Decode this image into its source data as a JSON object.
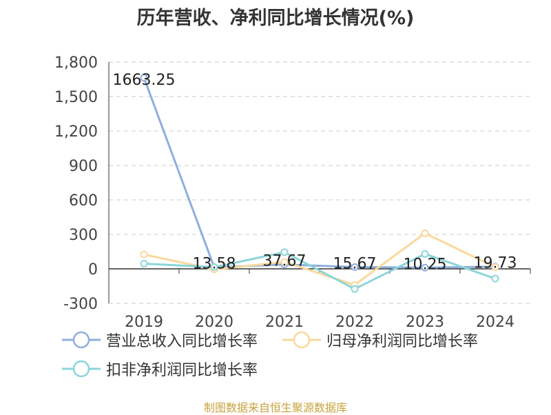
{
  "title": "历年营收、净利同比增长情况(%)",
  "source": "制图数据来自恒生聚源数据库",
  "chart_data": {
    "type": "line",
    "title": "历年营收、净利同比增长情况(%)",
    "categories": [
      "2019",
      "2020",
      "2021",
      "2022",
      "2023",
      "2024"
    ],
    "ylim": [
      -300,
      1800
    ],
    "yticks": [
      -300,
      0,
      300,
      600,
      900,
      1200,
      1500,
      1800
    ],
    "ytick_labels": [
      "-300",
      "0",
      "300",
      "600",
      "900",
      "1,200",
      "1,500",
      "1,800"
    ],
    "grid": true,
    "legend_position": "bottom",
    "series": [
      {
        "name": "营业总收入同比增长率",
        "color": "#8eaedc",
        "values": [
          1663.25,
          13.58,
          37.67,
          15.67,
          10.25,
          19.73
        ],
        "labels": [
          "1663.25",
          "13.58",
          "37.67",
          "15.67",
          "10.25",
          "19.73"
        ]
      },
      {
        "name": "归母净利润同比增长率",
        "color": "#fad89c",
        "values": [
          125,
          -5,
          60,
          -140,
          310,
          15
        ],
        "labels": []
      },
      {
        "name": "扣非净利润同比增长率",
        "color": "#8bd5d9",
        "values": [
          45,
          15,
          145,
          -175,
          130,
          -85
        ],
        "labels": []
      }
    ]
  }
}
